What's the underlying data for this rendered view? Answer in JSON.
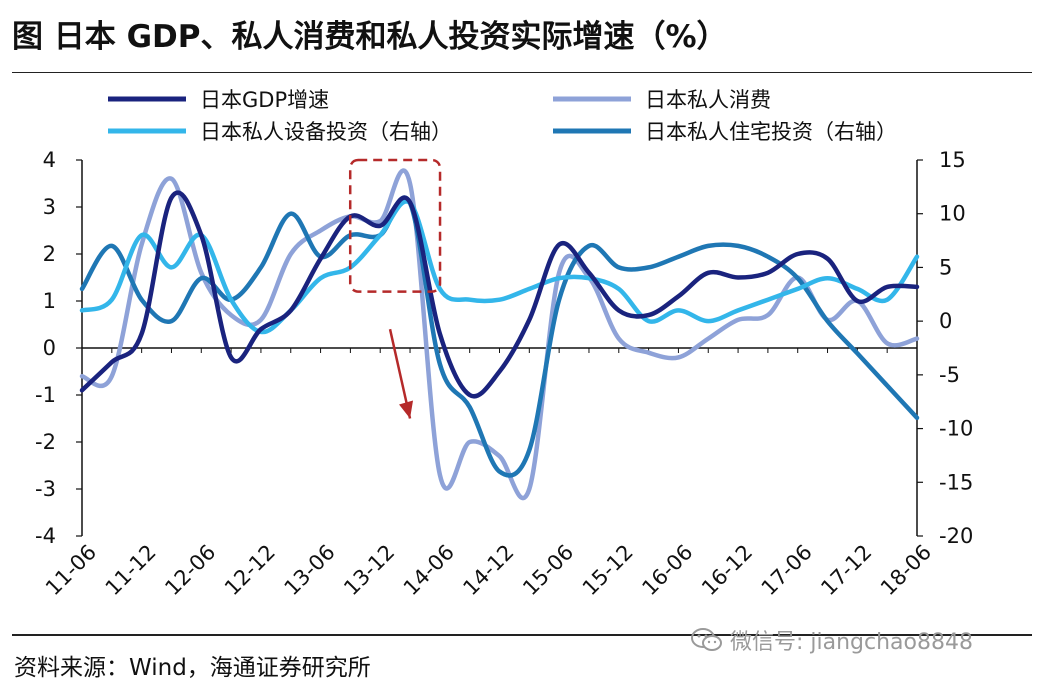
{
  "title": "图   日本 GDP、私人消费和私人投资实际增速（%）",
  "source": "资料来源：Wind，海通证券研究所",
  "watermark": {
    "icon": "wechat-icon",
    "text": "微信号: jiangchao8848"
  },
  "chart_data": {
    "type": "line",
    "x": [
      "11-06",
      "11-09",
      "11-12",
      "12-03",
      "12-06",
      "12-09",
      "12-12",
      "13-03",
      "13-06",
      "13-09",
      "13-12",
      "14-03",
      "14-06",
      "14-09",
      "14-12",
      "15-03",
      "15-06",
      "15-09",
      "15-12",
      "16-03",
      "16-06",
      "16-09",
      "16-12",
      "17-03",
      "17-06",
      "17-09",
      "17-12",
      "18-03",
      "18-06"
    ],
    "xticks": [
      "11-06",
      "11-12",
      "12-06",
      "12-12",
      "13-06",
      "13-12",
      "14-06",
      "14-12",
      "15-06",
      "15-12",
      "16-06",
      "16-12",
      "17-06",
      "17-12",
      "18-06"
    ],
    "left_axis": {
      "ylim": [
        -4,
        4
      ],
      "ticks": [
        "4",
        "3",
        "2",
        "1",
        "0",
        "-1",
        "-2",
        "-3",
        "-4"
      ]
    },
    "right_axis": {
      "ylim": [
        -20,
        15
      ],
      "ticks": [
        "15",
        "10",
        "5",
        "0",
        "-5",
        "-10",
        "-15",
        "-20"
      ]
    },
    "highlight": {
      "style": "dashed-rectangle",
      "x_range": [
        "13-12",
        "14-03"
      ],
      "color": "#b52a2a"
    },
    "arrow": {
      "at": "14-03",
      "direction": "down",
      "color": "#b52a2a"
    },
    "colors": {
      "gdp": "#1a237e",
      "consumption": "#8ea2d8",
      "equipment": "#33b6ea",
      "housing": "#1f77b4"
    },
    "series": [
      {
        "name": "日本GDP增速",
        "axis": "left",
        "color": "#1a237e",
        "values": [
          -0.9,
          -0.3,
          0.3,
          3.2,
          2.4,
          -0.2,
          0.4,
          0.8,
          1.9,
          2.8,
          2.6,
          3.1,
          0.3,
          -1.0,
          -0.5,
          0.6,
          2.2,
          1.6,
          0.8,
          0.7,
          1.1,
          1.6,
          1.5,
          1.6,
          2.0,
          1.9,
          1.0,
          1.3,
          1.3
        ]
      },
      {
        "name": "日本私人消费",
        "axis": "left",
        "color": "#8ea2d8",
        "values": [
          -0.6,
          -0.6,
          2.2,
          3.6,
          1.6,
          0.7,
          0.6,
          2.0,
          2.5,
          2.8,
          2.7,
          3.5,
          -2.7,
          -2.0,
          -2.3,
          -3.0,
          1.6,
          1.5,
          0.2,
          -0.1,
          -0.2,
          0.2,
          0.6,
          0.7,
          1.5,
          0.6,
          1.0,
          0.1,
          0.2
        ]
      },
      {
        "name": "日本私人设备投资（右轴）",
        "axis": "right",
        "color": "#33b6ea",
        "values": [
          1,
          2,
          8,
          5,
          8,
          2,
          -1,
          1,
          4,
          5,
          8,
          11,
          3,
          2,
          2,
          3,
          4,
          4,
          3,
          0,
          1,
          0,
          1,
          2,
          3,
          4,
          3,
          2,
          6
        ]
      },
      {
        "name": "日本私人住宅投资（右轴）",
        "axis": "right",
        "color": "#1f77b4",
        "values": [
          3,
          7,
          2,
          0,
          4,
          2,
          5,
          10,
          6,
          8,
          8,
          11,
          -4,
          -8,
          -14,
          -12,
          2,
          7,
          5,
          5,
          6,
          7,
          7,
          6,
          4,
          0,
          -3,
          -6,
          -9
        ]
      }
    ]
  }
}
